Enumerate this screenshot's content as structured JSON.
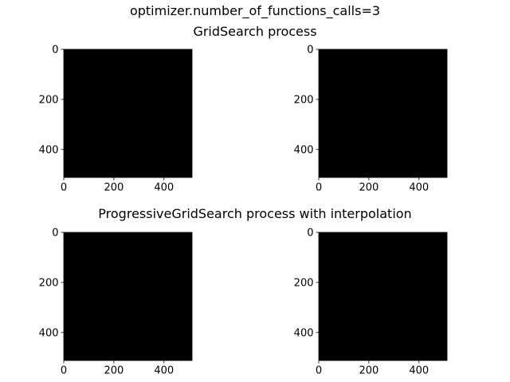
{
  "figure": {
    "suptitle": "optimizer.number_of_functions_calls=3",
    "row_titles": [
      "GridSearch process",
      "ProgressiveGridSearch process with interpolation"
    ]
  },
  "chart_data": [
    {
      "type": "heatmap",
      "row": 0,
      "col": 0,
      "title": "",
      "image_size": [
        512,
        512
      ],
      "fill_color": "#030000",
      "x_ticks": [
        0,
        200,
        400
      ],
      "y_ticks": [
        0,
        200,
        400
      ],
      "xlim": [
        0,
        512
      ],
      "ylim": [
        512,
        0
      ],
      "grid": false
    },
    {
      "type": "heatmap",
      "row": 0,
      "col": 1,
      "title": "",
      "image_size": [
        512,
        512
      ],
      "fill_color": "#030000",
      "x_ticks": [
        0,
        200,
        400
      ],
      "y_ticks": [
        0,
        200,
        400
      ],
      "xlim": [
        0,
        512
      ],
      "ylim": [
        512,
        0
      ],
      "grid": false
    },
    {
      "type": "heatmap",
      "row": 1,
      "col": 0,
      "title": "",
      "image_size": [
        512,
        512
      ],
      "fill_color": "#030000",
      "x_ticks": [
        0,
        200,
        400
      ],
      "y_ticks": [
        0,
        200,
        400
      ],
      "xlim": [
        0,
        512
      ],
      "ylim": [
        512,
        0
      ],
      "grid": false
    },
    {
      "type": "heatmap",
      "row": 1,
      "col": 1,
      "title": "",
      "image_size": [
        512,
        512
      ],
      "fill_color": "#030000",
      "x_ticks": [
        0,
        200,
        400
      ],
      "y_ticks": [
        0,
        200,
        400
      ],
      "xlim": [
        0,
        512
      ],
      "ylim": [
        512,
        0
      ],
      "grid": false
    }
  ]
}
